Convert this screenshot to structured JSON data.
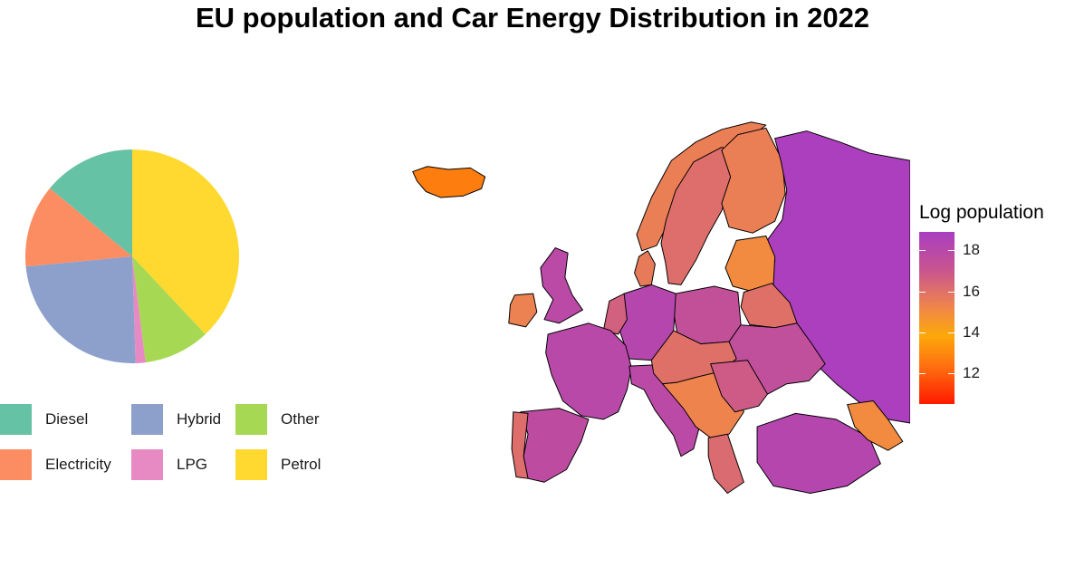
{
  "title": "EU population and Car Energy Distribution in 2022",
  "chart_data": [
    {
      "type": "pie",
      "title": "",
      "slices": [
        {
          "label": "Petrol",
          "value": 38,
          "color": "#ffd92f"
        },
        {
          "label": "Other",
          "value": 10,
          "color": "#a6d854"
        },
        {
          "label": "LPG",
          "value": 1.5,
          "color": "#e78ac3"
        },
        {
          "label": "Hybrid",
          "value": 24,
          "color": "#8da0cb"
        },
        {
          "label": "Electricity",
          "value": 12.5,
          "color": "#fc8d62"
        },
        {
          "label": "Diesel",
          "value": 14,
          "color": "#66c2a5"
        }
      ],
      "legend": [
        {
          "label": "Diesel",
          "color": "#66c2a5"
        },
        {
          "label": "Hybrid",
          "color": "#8da0cb"
        },
        {
          "label": "Other",
          "color": "#a6d854"
        },
        {
          "label": "Electricity",
          "color": "#fc8d62"
        },
        {
          "label": "LPG",
          "color": "#e78ac3"
        },
        {
          "label": "Petrol",
          "color": "#ffd92f"
        }
      ],
      "legend_placement": "bottom"
    },
    {
      "type": "choropleth",
      "legend_title": "Log population",
      "ticks": [
        18,
        16,
        14,
        12
      ],
      "range": [
        10.5,
        18.9
      ],
      "colors": {
        "high": "#a93ec0",
        "mid": "#f0864a",
        "low": "#ff1a00"
      },
      "regions": [
        {
          "id": "russia",
          "value": 18.8
        },
        {
          "id": "germany",
          "value": 18.2
        },
        {
          "id": "france",
          "value": 18.0
        },
        {
          "id": "italy",
          "value": 17.9
        },
        {
          "id": "spain",
          "value": 17.7
        },
        {
          "id": "turkey",
          "value": 18.2
        },
        {
          "id": "ukraine",
          "value": 17.5
        },
        {
          "id": "poland",
          "value": 17.4
        },
        {
          "id": "romania",
          "value": 16.8
        },
        {
          "id": "sweden",
          "value": 16.1
        },
        {
          "id": "norway",
          "value": 15.5
        },
        {
          "id": "finland",
          "value": 15.5
        },
        {
          "id": "belarus",
          "value": 16.0
        },
        {
          "id": "portugal",
          "value": 16.1
        },
        {
          "id": "netherlands",
          "value": 16.6
        },
        {
          "id": "uk",
          "value": 17.9
        },
        {
          "id": "ireland",
          "value": 15.4
        },
        {
          "id": "iceland",
          "value": 12.7
        },
        {
          "id": "baltics",
          "value": 15.0
        },
        {
          "id": "central",
          "value": 16.0
        },
        {
          "id": "balkans",
          "value": 15.3
        },
        {
          "id": "greece",
          "value": 16.2
        },
        {
          "id": "caucasus",
          "value": 15.0
        },
        {
          "id": "denmark",
          "value": 15.6
        }
      ]
    }
  ]
}
